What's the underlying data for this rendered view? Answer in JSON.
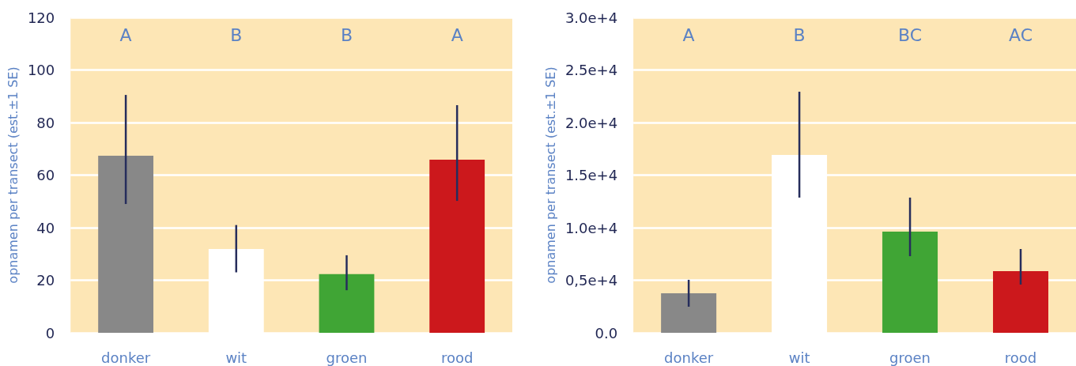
{
  "chart_data": [
    {
      "type": "bar",
      "ylabel": "opnamen per transect (est.±1 SE)",
      "categories": [
        "donker",
        "wit",
        "groen",
        "rood"
      ],
      "values": [
        67.4,
        31.9,
        22.3,
        65.9
      ],
      "colors": [
        "#888888",
        "#ffffff",
        "#40a535",
        "#cc181c"
      ],
      "errors": [
        [
          49,
          90.5
        ],
        [
          23,
          41
        ],
        [
          16.2,
          29.5
        ],
        [
          50.2,
          86.6
        ]
      ],
      "ylim": [
        0,
        120
      ],
      "yticks": [
        0,
        20,
        40,
        60,
        80,
        100,
        120
      ],
      "grid": "y",
      "annotations": [
        "A",
        "B",
        "B",
        "A"
      ]
    },
    {
      "type": "bar",
      "ylabel": "opnamen per transect (est.±1 SE)",
      "categories": [
        "donker",
        "wit",
        "groen",
        "rood"
      ],
      "values": [
        3760,
        16920,
        9620,
        5860
      ],
      "colors": [
        "#888888",
        "#ffffff",
        "#40a535",
        "#cc181c"
      ],
      "errors": [
        [
          2480,
          5040
        ],
        [
          12860,
          22930
        ],
        [
          7290,
          12860
        ],
        [
          4590,
          7970
        ]
      ],
      "ylim": [
        0,
        30000
      ],
      "yticks": [
        {
          "value": 0,
          "label": "0.0"
        },
        {
          "value": 5000,
          "label": "0,5e+4"
        },
        {
          "value": 10000,
          "label": "1.0e+4"
        },
        {
          "value": 15000,
          "label": "1.5e+4"
        },
        {
          "value": 20000,
          "label": "2.0e+4"
        },
        {
          "value": 25000,
          "label": "2.5e+4"
        },
        {
          "value": 30000,
          "label": "3.0e+4"
        }
      ],
      "grid": "y",
      "annotations": [
        "A",
        "B",
        "BC",
        "AC"
      ]
    }
  ]
}
